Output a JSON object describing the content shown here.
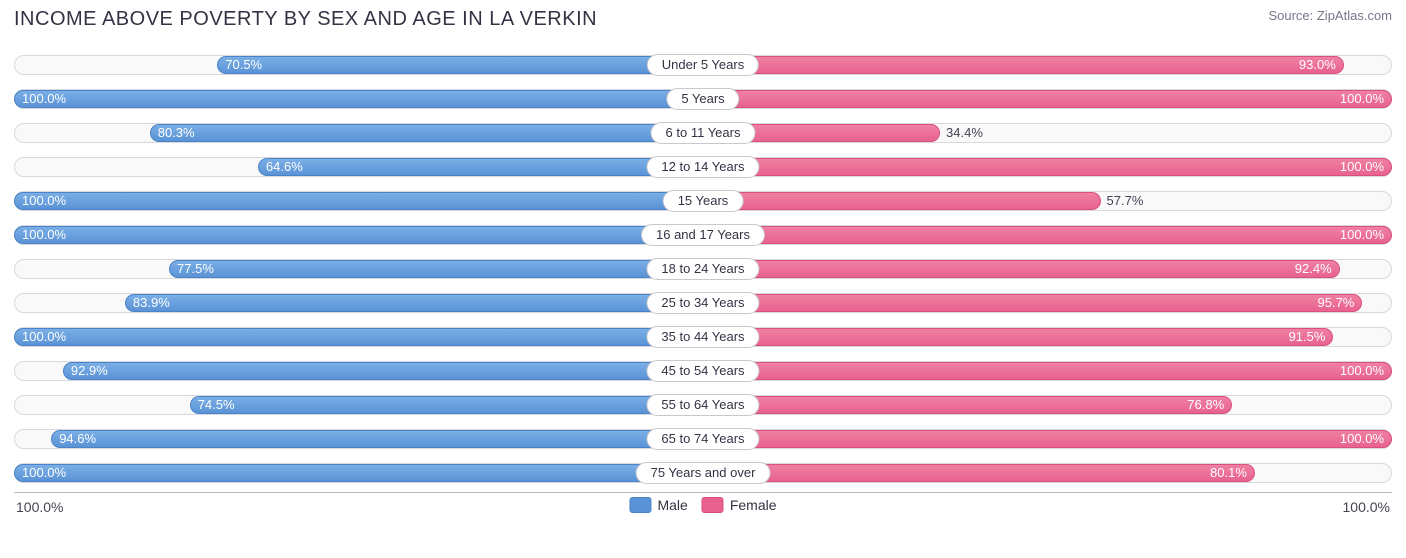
{
  "title": "INCOME ABOVE POVERTY BY SEX AND AGE IN LA VERKIN",
  "source": "Source: ZipAtlas.com",
  "chart": {
    "type": "diverging-bar",
    "xmax": 100.0,
    "axis_label_left": "100.0%",
    "axis_label_right": "100.0%",
    "track_bg": "#f9f9fa",
    "track_border": "#d8d8dd",
    "male_color": "#5a93d6",
    "female_color": "#e86290",
    "label_inside_color": "#ffffff",
    "label_outside_color": "#444455",
    "title_color": "#333344",
    "title_fontsize": 20,
    "value_fontsize": 13,
    "categories": [
      {
        "label": "Under 5 Years",
        "male": 70.5,
        "female": 93.0
      },
      {
        "label": "5 Years",
        "male": 100.0,
        "female": 100.0
      },
      {
        "label": "6 to 11 Years",
        "male": 80.3,
        "female": 34.4
      },
      {
        "label": "12 to 14 Years",
        "male": 64.6,
        "female": 100.0
      },
      {
        "label": "15 Years",
        "male": 100.0,
        "female": 57.7
      },
      {
        "label": "16 and 17 Years",
        "male": 100.0,
        "female": 100.0
      },
      {
        "label": "18 to 24 Years",
        "male": 77.5,
        "female": 92.4
      },
      {
        "label": "25 to 34 Years",
        "male": 83.9,
        "female": 95.7
      },
      {
        "label": "35 to 44 Years",
        "male": 100.0,
        "female": 91.5
      },
      {
        "label": "45 to 54 Years",
        "male": 92.9,
        "female": 100.0
      },
      {
        "label": "55 to 64 Years",
        "male": 74.5,
        "female": 76.8
      },
      {
        "label": "65 to 74 Years",
        "male": 94.6,
        "female": 100.0
      },
      {
        "label": "75 Years and over",
        "male": 100.0,
        "female": 80.1
      }
    ],
    "legend": [
      {
        "label": "Male",
        "color": "#5a93d6"
      },
      {
        "label": "Female",
        "color": "#e86290"
      }
    ]
  }
}
